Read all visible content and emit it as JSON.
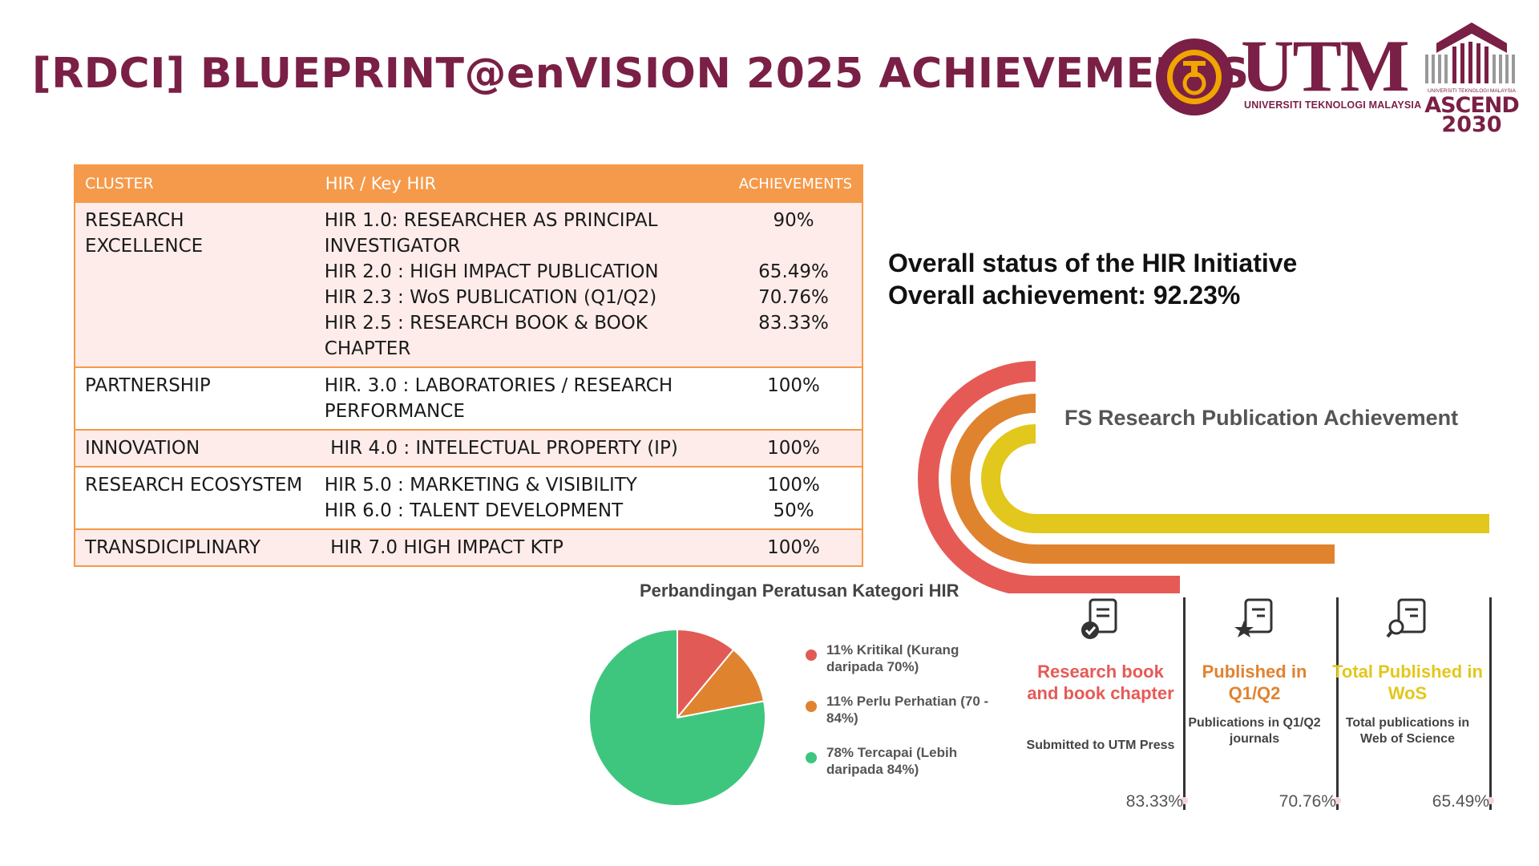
{
  "title": "[RDCI] BLUEPRINT@enVISION 2025 ACHIEVEMENTS",
  "logos": {
    "utm_word": "UTM",
    "utm_subtitle": "UNIVERSITI TEKNOLOGI MALAYSIA",
    "ascend_small": "UNIVERSITI TEKNOLOGI MALAYSIA",
    "ascend_word": "ASCEND",
    "ascend_year": "2030",
    "colors": {
      "maroon": "#7a1f45",
      "gold": "#f0a500"
    }
  },
  "table": {
    "headers": [
      "CLUSTER",
      "HIR / Key HIR",
      "ACHIEVEMENTS"
    ],
    "rows": [
      {
        "cluster": "RESEARCH EXCELLENCE",
        "hir": [
          "HIR 1.0: RESEARCHER AS PRINCIPAL INVESTIGATOR",
          "HIR 2.0 :  HIGH IMPACT PUBLICATION",
          "HIR 2.3 :  WoS PUBLICATION (Q1/Q2)",
          "HIR 2.5 : RESEARCH BOOK & BOOK CHAPTER"
        ],
        "achievements": [
          "90%",
          "65.49%",
          "70.76%",
          "83.33%"
        ]
      },
      {
        "cluster": "PARTNERSHIP",
        "hir": [
          "HIR. 3.0 : LABORATORIES / RESEARCH PERFORMANCE"
        ],
        "achievements": [
          "100%"
        ]
      },
      {
        "cluster": "INNOVATION",
        "hir": [
          " HIR 4.0 : INTELECTUAL PROPERTY (IP)"
        ],
        "achievements": [
          "100%"
        ]
      },
      {
        "cluster": "RESEARCH ECOSYSTEM",
        "hir": [
          "HIR 5.0 : MARKETING & VISIBILITY",
          "HIR 6.0 : TALENT DEVELOPMENT"
        ],
        "achievements": [
          "100%",
          "50%"
        ]
      },
      {
        "cluster": "TRANSDICIPLINARY",
        "hir": [
          " HIR 7.0 HIGH IMPACT KTP"
        ],
        "achievements": [
          "100%"
        ]
      }
    ]
  },
  "overall": {
    "status": "Overall status of the HIR Initiative",
    "achievement": "Overall achievement: 92.23%"
  },
  "fs_publication": {
    "title": "FS Research Publication Achievement",
    "arc_colors": [
      "#e65a56",
      "#e0832f",
      "#e2c71c"
    ],
    "stats": [
      {
        "title": "Research book and book chapter",
        "desc": "Submitted to  UTM Press",
        "value": "83.33%",
        "color": "#e65a56",
        "icon": "document-check-icon"
      },
      {
        "title": "Published in Q1/Q2",
        "desc": "Publications in Q1/Q2 journals",
        "value": "70.76%",
        "color": "#e0832f",
        "icon": "document-star-icon"
      },
      {
        "title": "Total Published in WoS",
        "desc": "Total publications in Web of Science",
        "value": "65.49%",
        "color": "#e2c71c",
        "icon": "document-search-icon"
      }
    ]
  },
  "chart_data": {
    "type": "pie",
    "title": "Perbandingan Peratusan Kategori HIR",
    "slices": [
      {
        "label": "11% Kritikal (Kurang daripada 70%)",
        "value": 11,
        "color": "#e25a55"
      },
      {
        "label": "11% Perlu Perhatian (70 - 84%)",
        "value": 11,
        "color": "#e0832f"
      },
      {
        "label": "78% Tercapai (Lebih daripada 84%)",
        "value": 78,
        "color": "#3ec67f"
      }
    ],
    "legend_position": "right"
  }
}
